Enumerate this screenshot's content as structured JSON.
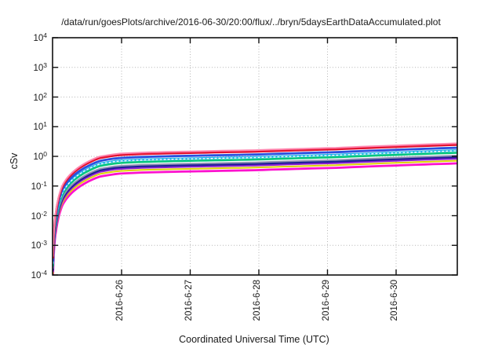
{
  "title": "/data/run/goesPlots/archive/2016-06-30/20:00/flux/../bryn/5daysEarthDataAccumulated.plot",
  "chart_data": {
    "type": "line",
    "title": "/data/run/goesPlots/archive/2016-06-30/20:00/flux/../bryn/5daysEarthDataAccumulated.plot",
    "xlabel": "Coordinated Universal Time (UTC)",
    "ylabel": "cSv",
    "x_axis": {
      "tick_labels": [
        "2016-6-26",
        "2016-6-27",
        "2016-6-28",
        "2016-6-29",
        "2016-6-30"
      ],
      "span_days": 5.9
    },
    "y_axis": {
      "scale": "log10",
      "exponents": [
        4,
        3,
        2,
        1,
        0,
        -1,
        -2,
        -3,
        -4
      ],
      "ylim": [
        0.0001,
        10000
      ]
    },
    "grid": true,
    "legend": "none",
    "series": [
      {
        "name": "pink",
        "color": "#ff85ae",
        "end_value_cSv": 2.75,
        "width": 2.0
      },
      {
        "name": "red",
        "color": "#e31230",
        "end_value_cSv": 2.45,
        "width": 2.8
      },
      {
        "name": "blue",
        "color": "#2a50de",
        "end_value_cSv": 1.95,
        "width": 2.8
      },
      {
        "name": "white",
        "color": "#ffffff",
        "end_value_cSv": 1.54,
        "width": 1.3,
        "dash": "2 3"
      },
      {
        "name": "cyan",
        "color": "#1ab2e8",
        "end_value_cSv": 1.58,
        "width": 2.8
      },
      {
        "name": "green",
        "color": "#06c77c",
        "end_value_cSv": 1.32,
        "width": 2.6
      },
      {
        "name": "gray",
        "color": "#8d8fb4",
        "end_value_cSv": 1.06,
        "width": 2.0
      },
      {
        "name": "navy",
        "color": "#1d1d96",
        "end_value_cSv": 0.95,
        "width": 2.6
      },
      {
        "name": "purple",
        "color": "#8b20d2",
        "end_value_cSv": 0.84,
        "width": 2.4
      },
      {
        "name": "yellow",
        "color": "#ddd104",
        "end_value_cSv": 0.71,
        "width": 2.0
      },
      {
        "name": "magenta",
        "color": "#fc12ce",
        "end_value_cSv": 0.58,
        "width": 2.8
      }
    ],
    "accumulation_profile": {
      "description": "shared curve shape: log10(value/end_value) vs fraction u of full time span",
      "u": [
        0.001,
        0.0015,
        0.004,
        0.01,
        0.024,
        0.06,
        0.115,
        0.16,
        0.22,
        0.35,
        0.5,
        0.7,
        0.85,
        1.0
      ],
      "log10_attenuation": [
        -3.8,
        -3.6,
        -2.85,
        -2.15,
        -1.42,
        -0.85,
        -0.45,
        -0.35,
        -0.31,
        -0.27,
        -0.23,
        -0.15,
        -0.07,
        0
      ]
    }
  },
  "colors": {
    "background": "#ffffff",
    "axis": "#111111",
    "grid": "#b5b5b5",
    "text": "#1a1a1a"
  }
}
